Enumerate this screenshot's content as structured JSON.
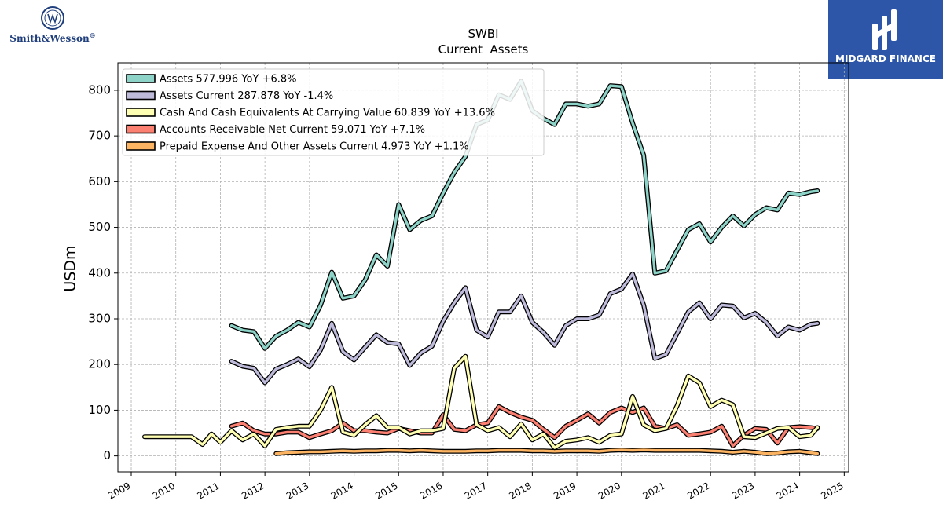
{
  "brand": {
    "left_logo_text": "Smith&Wesson",
    "left_logo_mark": "®",
    "right_logo_text": "MIDGARD FINANCE"
  },
  "chart_data": {
    "type": "line",
    "title": "SWBI",
    "subtitle": "Current  Assets",
    "ylabel": "USDm",
    "xlabel": "",
    "xlim": [
      2008.7,
      2025.1
    ],
    "ylim": [
      -35,
      860
    ],
    "x_ticks": [
      "2009",
      "2010",
      "2011",
      "2012",
      "2013",
      "2014",
      "2015",
      "2016",
      "2017",
      "2018",
      "2019",
      "2020",
      "2021",
      "2022",
      "2023",
      "2024",
      "2025"
    ],
    "y_ticks": [
      0,
      100,
      200,
      300,
      400,
      500,
      600,
      700,
      800
    ],
    "grid": true,
    "legend_position": "top-left",
    "series": [
      {
        "name": "Assets",
        "legend": "Assets  577.996 YoY +6.8%",
        "color": "#8dd3c7",
        "x": [
          2011.25,
          2011.5,
          2011.75,
          2012.0,
          2012.25,
          2012.5,
          2012.75,
          2013.0,
          2013.25,
          2013.5,
          2013.75,
          2014.0,
          2014.25,
          2014.5,
          2014.75,
          2015.0,
          2015.25,
          2015.5,
          2015.75,
          2016.0,
          2016.25,
          2016.5,
          2016.75,
          2017.0,
          2017.25,
          2017.5,
          2017.75,
          2018.0,
          2018.25,
          2018.5,
          2018.75,
          2019.0,
          2019.25,
          2019.5,
          2019.75,
          2020.0,
          2020.25,
          2020.5,
          2020.75,
          2021.0,
          2021.25,
          2021.5,
          2021.75,
          2022.0,
          2022.25,
          2022.5,
          2022.75,
          2023.0,
          2023.25,
          2023.5,
          2023.75,
          2024.0,
          2024.25,
          2024.4
        ],
        "y": [
          285,
          275,
          272,
          235,
          262,
          275,
          292,
          282,
          330,
          402,
          345,
          350,
          385,
          440,
          415,
          550,
          495,
          515,
          525,
          575,
          620,
          655,
          725,
          735,
          790,
          780,
          820,
          755,
          738,
          725,
          770,
          770,
          765,
          770,
          810,
          808,
          728,
          658,
          400,
          405,
          450,
          495,
          508,
          468,
          500,
          525,
          503,
          528,
          543,
          538,
          575,
          572,
          578,
          580
        ]
      },
      {
        "name": "Assets Current",
        "legend": "Assets Current  287.878 YoY -1.4%",
        "color": "#bebada",
        "x": [
          2011.25,
          2011.5,
          2011.75,
          2012.0,
          2012.25,
          2012.5,
          2012.75,
          2013.0,
          2013.25,
          2013.5,
          2013.75,
          2014.0,
          2014.25,
          2014.5,
          2014.75,
          2015.0,
          2015.25,
          2015.5,
          2015.75,
          2016.0,
          2016.25,
          2016.5,
          2016.75,
          2017.0,
          2017.25,
          2017.5,
          2017.75,
          2018.0,
          2018.25,
          2018.5,
          2018.75,
          2019.0,
          2019.25,
          2019.5,
          2019.75,
          2020.0,
          2020.25,
          2020.5,
          2020.75,
          2021.0,
          2021.25,
          2021.5,
          2021.75,
          2022.0,
          2022.25,
          2022.5,
          2022.75,
          2023.0,
          2023.25,
          2023.5,
          2023.75,
          2024.0,
          2024.25,
          2024.4
        ],
        "y": [
          207,
          196,
          192,
          160,
          190,
          200,
          212,
          195,
          232,
          290,
          228,
          210,
          238,
          265,
          248,
          245,
          198,
          225,
          240,
          295,
          335,
          368,
          275,
          260,
          315,
          315,
          350,
          292,
          270,
          242,
          285,
          300,
          300,
          308,
          355,
          365,
          398,
          330,
          213,
          222,
          268,
          315,
          335,
          300,
          330,
          328,
          302,
          312,
          292,
          262,
          282,
          275,
          288,
          290
        ]
      },
      {
        "name": "Cash And Cash Equivalents At Carrying Value",
        "legend": "Cash And Cash Equivalents At Carrying Value  60.839 YoY +13.6%",
        "color": "#ffffb3",
        "x": [
          2009.3,
          2009.6,
          2009.9,
          2010.2,
          2010.35,
          2010.6,
          2010.8,
          2011.0,
          2011.25,
          2011.5,
          2011.75,
          2012.0,
          2012.25,
          2012.5,
          2012.75,
          2013.0,
          2013.25,
          2013.5,
          2013.75,
          2014.0,
          2014.25,
          2014.5,
          2014.75,
          2015.0,
          2015.25,
          2015.5,
          2015.75,
          2016.0,
          2016.25,
          2016.5,
          2016.75,
          2017.0,
          2017.25,
          2017.5,
          2017.75,
          2018.0,
          2018.25,
          2018.5,
          2018.75,
          2019.0,
          2019.25,
          2019.5,
          2019.75,
          2020.0,
          2020.25,
          2020.5,
          2020.75,
          2021.0,
          2021.25,
          2021.5,
          2021.75,
          2022.0,
          2022.25,
          2022.5,
          2022.75,
          2023.0,
          2023.25,
          2023.5,
          2023.75,
          2024.0,
          2024.25,
          2024.4
        ],
        "y": [
          42,
          42,
          42,
          42,
          42,
          25,
          48,
          30,
          55,
          35,
          48,
          22,
          58,
          62,
          65,
          65,
          100,
          150,
          52,
          45,
          68,
          88,
          62,
          62,
          48,
          55,
          55,
          60,
          192,
          218,
          68,
          55,
          62,
          42,
          70,
          35,
          48,
          18,
          32,
          35,
          40,
          30,
          45,
          48,
          130,
          68,
          55,
          60,
          110,
          175,
          160,
          108,
          122,
          112,
          42,
          40,
          50,
          60,
          62,
          42,
          45,
          62
        ]
      },
      {
        "name": "Accounts Receivable Net Current",
        "legend": "Accounts Receivable Net Current  59.071 YoY +7.1%",
        "color": "#fb8072",
        "x": [
          2011.25,
          2011.5,
          2011.75,
          2012.0,
          2012.25,
          2012.5,
          2012.75,
          2013.0,
          2013.25,
          2013.5,
          2013.75,
          2014.0,
          2014.25,
          2014.5,
          2014.75,
          2015.0,
          2015.25,
          2015.5,
          2015.75,
          2016.0,
          2016.25,
          2016.5,
          2016.75,
          2017.0,
          2017.25,
          2017.5,
          2017.75,
          2018.0,
          2018.25,
          2018.5,
          2018.75,
          2019.0,
          2019.25,
          2019.5,
          2019.75,
          2020.0,
          2020.25,
          2020.5,
          2020.75,
          2021.0,
          2021.25,
          2021.5,
          2021.75,
          2022.0,
          2022.25,
          2022.5,
          2022.75,
          2023.0,
          2023.25,
          2023.5,
          2023.75,
          2024.0,
          2024.25,
          2024.4
        ],
        "y": [
          65,
          72,
          55,
          48,
          48,
          52,
          52,
          40,
          48,
          55,
          72,
          55,
          55,
          52,
          50,
          60,
          55,
          50,
          50,
          90,
          58,
          55,
          68,
          72,
          108,
          95,
          85,
          78,
          58,
          40,
          65,
          78,
          92,
          72,
          95,
          105,
          95,
          105,
          65,
          60,
          68,
          45,
          48,
          52,
          65,
          22,
          45,
          60,
          58,
          28,
          62,
          64,
          62,
          60
        ]
      },
      {
        "name": "Prepaid Expense And Other Assets Current",
        "legend": "Prepaid Expense And Other Assets Current  4.973 YoY +1.1%",
        "color": "#fdb462",
        "x": [
          2012.25,
          2012.5,
          2012.75,
          2013.0,
          2013.25,
          2013.5,
          2013.75,
          2014.0,
          2014.25,
          2014.5,
          2014.75,
          2015.0,
          2015.25,
          2015.5,
          2015.75,
          2016.0,
          2016.25,
          2016.5,
          2016.75,
          2017.0,
          2017.25,
          2017.5,
          2017.75,
          2018.0,
          2018.25,
          2018.5,
          2018.75,
          2019.0,
          2019.25,
          2019.5,
          2019.75,
          2020.0,
          2020.25,
          2020.5,
          2020.75,
          2021.0,
          2021.25,
          2021.5,
          2021.75,
          2022.0,
          2022.25,
          2022.5,
          2022.75,
          2023.0,
          2023.25,
          2023.5,
          2023.75,
          2024.0,
          2024.25,
          2024.4
        ],
        "y": [
          5,
          7,
          8,
          9,
          9,
          10,
          11,
          10,
          11,
          11,
          12,
          12,
          11,
          12,
          11,
          10,
          10,
          10,
          11,
          11,
          12,
          12,
          12,
          11,
          11,
          10,
          11,
          11,
          11,
          10,
          12,
          13,
          12,
          13,
          12,
          12,
          12,
          12,
          12,
          11,
          10,
          8,
          10,
          8,
          5,
          6,
          9,
          10,
          7,
          5
        ]
      }
    ]
  }
}
